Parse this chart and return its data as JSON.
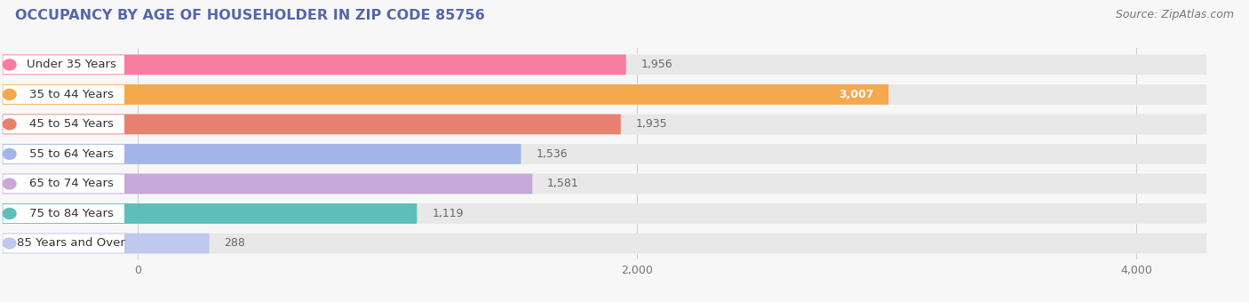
{
  "title": "OCCUPANCY BY AGE OF HOUSEHOLDER IN ZIP CODE 85756",
  "source": "Source: ZipAtlas.com",
  "categories": [
    "Under 35 Years",
    "35 to 44 Years",
    "45 to 54 Years",
    "55 to 64 Years",
    "65 to 74 Years",
    "75 to 84 Years",
    "85 Years and Over"
  ],
  "values": [
    1956,
    3007,
    1935,
    1536,
    1581,
    1119,
    288
  ],
  "bar_colors": [
    "#F87CA0",
    "#F5A84E",
    "#E88070",
    "#A3B5E8",
    "#C8A8D8",
    "#5CBFB8",
    "#C0C8F0"
  ],
  "xlim_left": -550,
  "xlim_right": 4300,
  "xticks": [
    0,
    2000,
    4000
  ],
  "background_color": "#f7f7f7",
  "bar_background_color": "#e8e8e8",
  "row_bg_color": "#f0f0f0",
  "title_fontsize": 11.5,
  "source_fontsize": 9,
  "bar_label_fontsize": 9.5,
  "tick_fontsize": 9,
  "value_label_fontsize": 9
}
